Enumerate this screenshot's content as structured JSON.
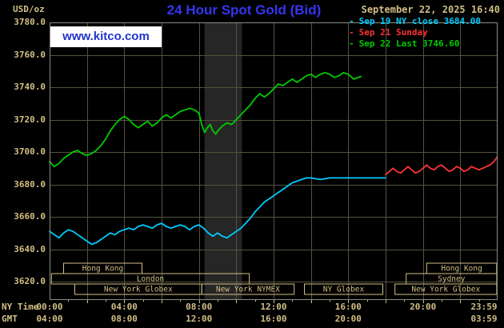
{
  "header": {
    "datetime": "September 22, 2025 16:40",
    "watermark": "www.kitco.com"
  },
  "colors": {
    "background": "#000000",
    "tan": "#d2bf85",
    "grid": "#525240",
    "border": "#8c8c84",
    "band": "#262626",
    "titleblue": "#3535f0",
    "kitcoblue": "#2233cc"
  },
  "sessions": [
    {
      "label": "Hong Kong",
      "row": 0,
      "start": 0.75,
      "end": 4.95
    },
    {
      "label": "Hong Kong",
      "row": 0,
      "start": 20.2,
      "end": 23.95
    },
    {
      "label": "London",
      "row": 1,
      "start": 0.1,
      "end": 10.7
    },
    {
      "label": "Sydney",
      "row": 1,
      "start": 19.1,
      "end": 23.95
    },
    {
      "label": "New York Globex",
      "row": 2,
      "start": 1.35,
      "end": 8.15
    },
    {
      "label": "New York NYMEX",
      "row": 2,
      "start": 8.15,
      "end": 13.1
    },
    {
      "label": "NY Globex",
      "row": 2,
      "start": 13.65,
      "end": 17.85
    },
    {
      "label": "New York Globex",
      "row": 2,
      "start": 18.5,
      "end": 23.95
    }
  ],
  "chart_data": {
    "type": "line",
    "title": "24 Hour Spot Gold (Bid)",
    "ylabel": "USD/oz",
    "legend_position": "top-right",
    "grid": true,
    "xlim_hours": [
      0,
      24
    ],
    "ylim": [
      3608.6,
      3780
    ],
    "y_ticks": [
      3780,
      3760,
      3740,
      3720,
      3700,
      3680,
      3660,
      3640,
      3620
    ],
    "x_grid_step": 2,
    "shaded_band_hours": [
      8.3,
      10.3
    ],
    "x_axis": {
      "label": "NY Time",
      "secondary_label": "GMT",
      "ticks_ny": [
        {
          "label": "00:00",
          "hour": 0
        },
        {
          "label": "04:00",
          "hour": 4
        },
        {
          "label": "08:00",
          "hour": 8
        },
        {
          "label": "12:00",
          "hour": 12
        },
        {
          "label": "16:00",
          "hour": 16
        },
        {
          "label": "20:00",
          "hour": 20
        },
        {
          "label": "23:59",
          "hour": 23.98
        }
      ],
      "ticks_gmt": [
        {
          "label": "04:00",
          "hour": 0
        },
        {
          "label": "08:00",
          "hour": 4
        },
        {
          "label": "12:00",
          "hour": 8
        },
        {
          "label": "16:00",
          "hour": 12
        },
        {
          "label": "20:00",
          "hour": 16
        },
        {
          "label": "03:59",
          "hour": 23.98
        }
      ]
    },
    "series": [
      {
        "id": "sep19",
        "name": "Sep 19 NY close 3684.00",
        "close": 3684.0,
        "color": "#00ccff",
        "points": [
          [
            0,
            3651
          ],
          [
            0.25,
            3649
          ],
          [
            0.5,
            3647
          ],
          [
            0.75,
            3650
          ],
          [
            1,
            3652
          ],
          [
            1.25,
            3651
          ],
          [
            1.5,
            3649
          ],
          [
            1.75,
            3647
          ],
          [
            2,
            3645
          ],
          [
            2.25,
            3643
          ],
          [
            2.5,
            3644
          ],
          [
            2.75,
            3646
          ],
          [
            3,
            3648
          ],
          [
            3.25,
            3650
          ],
          [
            3.5,
            3649
          ],
          [
            3.75,
            3651
          ],
          [
            4,
            3652
          ],
          [
            4.25,
            3653
          ],
          [
            4.5,
            3652
          ],
          [
            4.75,
            3654
          ],
          [
            5,
            3655
          ],
          [
            5.25,
            3654
          ],
          [
            5.5,
            3653
          ],
          [
            5.75,
            3655
          ],
          [
            6,
            3656
          ],
          [
            6.25,
            3654
          ],
          [
            6.5,
            3653
          ],
          [
            6.75,
            3654
          ],
          [
            7,
            3655
          ],
          [
            7.25,
            3654
          ],
          [
            7.5,
            3652
          ],
          [
            7.75,
            3654
          ],
          [
            8,
            3655
          ],
          [
            8.25,
            3653
          ],
          [
            8.5,
            3650
          ],
          [
            8.75,
            3648
          ],
          [
            9,
            3650
          ],
          [
            9.25,
            3648
          ],
          [
            9.5,
            3647
          ],
          [
            9.75,
            3649
          ],
          [
            10,
            3651
          ],
          [
            10.25,
            3653
          ],
          [
            10.5,
            3656
          ],
          [
            10.75,
            3659
          ],
          [
            11,
            3663
          ],
          [
            11.25,
            3666
          ],
          [
            11.5,
            3669
          ],
          [
            11.75,
            3671
          ],
          [
            12,
            3673
          ],
          [
            12.25,
            3675
          ],
          [
            12.5,
            3677
          ],
          [
            12.75,
            3679
          ],
          [
            13,
            3681
          ],
          [
            13.25,
            3682
          ],
          [
            13.5,
            3683
          ],
          [
            13.75,
            3684
          ],
          [
            14,
            3684
          ],
          [
            14.5,
            3683
          ],
          [
            15,
            3684
          ],
          [
            15.5,
            3684
          ],
          [
            16,
            3684
          ],
          [
            16.5,
            3684
          ],
          [
            17,
            3684
          ],
          [
            17.5,
            3684
          ],
          [
            18,
            3684
          ]
        ]
      },
      {
        "id": "sep21",
        "name": "Sep 21 Sunday",
        "color": "#ff3333",
        "points": [
          [
            18,
            3686
          ],
          [
            18.2,
            3688
          ],
          [
            18.4,
            3690
          ],
          [
            18.6,
            3688
          ],
          [
            18.8,
            3687
          ],
          [
            19,
            3689
          ],
          [
            19.2,
            3691
          ],
          [
            19.4,
            3689
          ],
          [
            19.6,
            3687
          ],
          [
            19.8,
            3688
          ],
          [
            20,
            3690
          ],
          [
            20.2,
            3692
          ],
          [
            20.4,
            3690
          ],
          [
            20.6,
            3689
          ],
          [
            20.8,
            3691
          ],
          [
            21,
            3692
          ],
          [
            21.2,
            3690
          ],
          [
            21.4,
            3688
          ],
          [
            21.6,
            3689
          ],
          [
            21.8,
            3691
          ],
          [
            22,
            3690
          ],
          [
            22.2,
            3688
          ],
          [
            22.4,
            3689
          ],
          [
            22.6,
            3691
          ],
          [
            22.8,
            3690
          ],
          [
            23,
            3689
          ],
          [
            23.2,
            3690
          ],
          [
            23.4,
            3691
          ],
          [
            23.6,
            3692
          ],
          [
            23.8,
            3694
          ],
          [
            23.98,
            3697
          ]
        ]
      },
      {
        "id": "sep22",
        "name": "Sep 22 Last 3746.60",
        "last": 3746.6,
        "color": "#00cc00",
        "points": [
          [
            0,
            3694
          ],
          [
            0.25,
            3691
          ],
          [
            0.5,
            3693
          ],
          [
            0.75,
            3696
          ],
          [
            1,
            3698
          ],
          [
            1.25,
            3700
          ],
          [
            1.5,
            3701
          ],
          [
            1.75,
            3699
          ],
          [
            2,
            3698
          ],
          [
            2.25,
            3699
          ],
          [
            2.5,
            3701
          ],
          [
            2.75,
            3704
          ],
          [
            3,
            3708
          ],
          [
            3.25,
            3713
          ],
          [
            3.5,
            3717
          ],
          [
            3.75,
            3720
          ],
          [
            4,
            3722
          ],
          [
            4.25,
            3720
          ],
          [
            4.5,
            3717
          ],
          [
            4.75,
            3715
          ],
          [
            5,
            3717
          ],
          [
            5.25,
            3719
          ],
          [
            5.5,
            3716
          ],
          [
            5.75,
            3718
          ],
          [
            6,
            3721
          ],
          [
            6.25,
            3723
          ],
          [
            6.5,
            3721
          ],
          [
            6.75,
            3723
          ],
          [
            7,
            3725
          ],
          [
            7.25,
            3726
          ],
          [
            7.5,
            3727
          ],
          [
            7.75,
            3726
          ],
          [
            8,
            3724
          ],
          [
            8.15,
            3717
          ],
          [
            8.3,
            3712
          ],
          [
            8.45,
            3715
          ],
          [
            8.6,
            3717
          ],
          [
            8.75,
            3713
          ],
          [
            8.9,
            3711
          ],
          [
            9,
            3713
          ],
          [
            9.25,
            3716
          ],
          [
            9.5,
            3718
          ],
          [
            9.75,
            3717
          ],
          [
            10,
            3720
          ],
          [
            10.25,
            3723
          ],
          [
            10.5,
            3726
          ],
          [
            10.75,
            3729
          ],
          [
            11,
            3733
          ],
          [
            11.25,
            3736
          ],
          [
            11.5,
            3734
          ],
          [
            11.75,
            3736
          ],
          [
            12,
            3739
          ],
          [
            12.25,
            3742
          ],
          [
            12.5,
            3741
          ],
          [
            12.75,
            3743
          ],
          [
            13,
            3745
          ],
          [
            13.25,
            3743
          ],
          [
            13.5,
            3745
          ],
          [
            13.75,
            3747
          ],
          [
            14,
            3748
          ],
          [
            14.25,
            3746
          ],
          [
            14.5,
            3748
          ],
          [
            14.75,
            3749
          ],
          [
            15,
            3748
          ],
          [
            15.25,
            3746
          ],
          [
            15.5,
            3747
          ],
          [
            15.75,
            3749
          ],
          [
            16,
            3748
          ],
          [
            16.3,
            3745
          ],
          [
            16.67,
            3746.6
          ]
        ]
      }
    ]
  }
}
